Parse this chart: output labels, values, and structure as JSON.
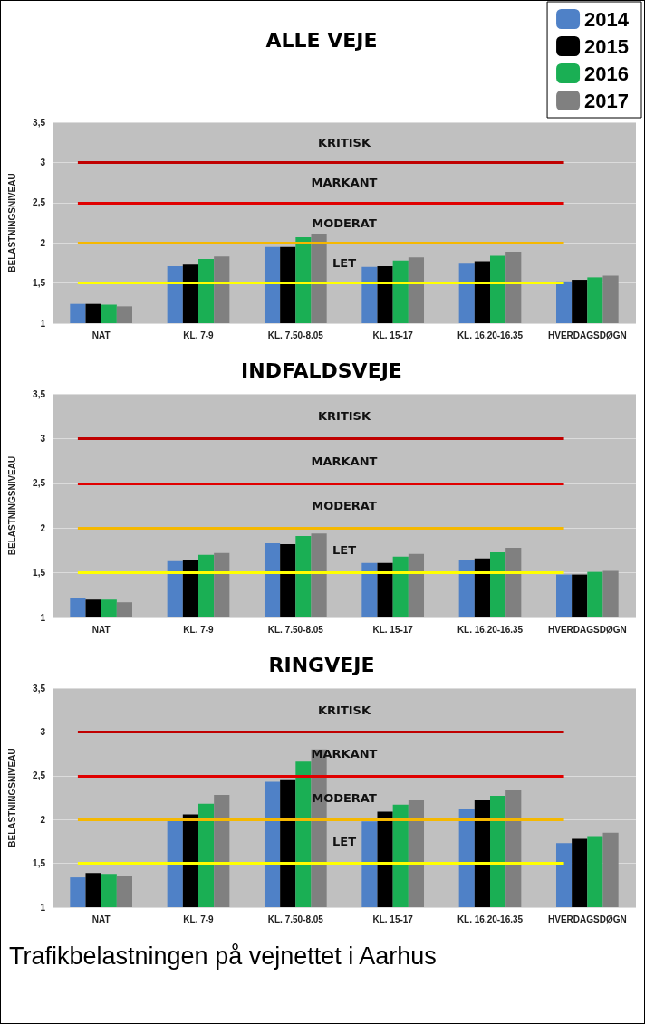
{
  "chart_data": [
    {
      "type": "bar",
      "title": "ALLE VEJE",
      "ylabel": "BELASTNINGSNIVEAU",
      "categories": [
        "NAT",
        "KL. 7-9",
        "KL. 7.50-8.05",
        "KL. 15-17",
        "KL. 16.20-16.35",
        "HVERDAGSDØGN"
      ],
      "series": [
        {
          "name": "2014",
          "color": "#4f81c7",
          "values": [
            1.24,
            1.71,
            1.95,
            1.7,
            1.74,
            1.52
          ]
        },
        {
          "name": "2015",
          "color": "#000000",
          "values": [
            1.24,
            1.73,
            1.95,
            1.71,
            1.77,
            1.54
          ]
        },
        {
          "name": "2016",
          "color": "#1aaf54",
          "values": [
            1.23,
            1.8,
            2.07,
            1.78,
            1.84,
            1.57
          ]
        },
        {
          "name": "2017",
          "color": "#808080",
          "values": [
            1.21,
            1.83,
            2.11,
            1.82,
            1.89,
            1.59
          ]
        }
      ],
      "ylim": [
        1,
        3.5
      ],
      "yticks": [
        1,
        {
          "value": 1.5,
          "label": "1,5"
        },
        2,
        {
          "value": 2.5,
          "label": "2,5"
        },
        3,
        {
          "value": 3.5,
          "label": "3,5"
        }
      ],
      "ref_lines": [
        {
          "axis": "y",
          "value": 1.5,
          "color": "#ffff00"
        },
        {
          "axis": "y",
          "value": 2,
          "color": "#f5b800"
        },
        {
          "axis": "y",
          "value": 2.5,
          "color": "#e00000"
        },
        {
          "axis": "y",
          "value": 3,
          "color": "#c00000"
        }
      ],
      "annotations": [
        "KRITISK",
        "MARKANT",
        "MODERAT",
        "LET"
      ],
      "grid": "y",
      "legend": "top right"
    },
    {
      "type": "bar",
      "title": "INDFALDSVEJE",
      "ylabel": "BELASTNINGSNIVEAU",
      "categories": [
        "NAT",
        "KL. 7-9",
        "KL. 7.50-8.05",
        "KL. 15-17",
        "KL. 16.20-16.35",
        "HVERDAGSDØGN"
      ],
      "series": [
        {
          "color": "#4f81c7",
          "values": [
            1.22,
            1.63,
            1.83,
            1.61,
            1.64,
            1.48
          ]
        },
        {
          "color": "#000000",
          "values": [
            1.2,
            1.64,
            1.82,
            1.61,
            1.66,
            1.48
          ]
        },
        {
          "color": "#1aaf54",
          "values": [
            1.2,
            1.7,
            1.91,
            1.68,
            1.73,
            1.51
          ]
        },
        {
          "color": "#808080",
          "values": [
            1.17,
            1.72,
            1.94,
            1.71,
            1.78,
            1.52
          ]
        }
      ],
      "ylim": [
        1,
        3.5
      ],
      "yticks": [
        1,
        {
          "value": 1.5,
          "label": "1,5"
        },
        2,
        {
          "value": 2.5,
          "label": "2,5"
        },
        3,
        {
          "value": 3.5,
          "label": "3,5"
        }
      ],
      "ref_lines": [
        {
          "axis": "y",
          "value": 1.5,
          "color": "#ffff00"
        },
        {
          "axis": "y",
          "value": 2,
          "color": "#f5b800"
        },
        {
          "axis": "y",
          "value": 2.5,
          "color": "#e00000"
        },
        {
          "axis": "y",
          "value": 3,
          "color": "#c00000"
        }
      ],
      "annotations": [
        "KRITISK",
        "MARKANT",
        "MODERAT",
        "LET"
      ],
      "grid": "y"
    },
    {
      "type": "bar",
      "title": "RINGVEJE",
      "ylabel": "BELASTNINGSNIVEAU",
      "categories": [
        "NAT",
        "KL. 7-9",
        "KL. 7.50-8.05",
        "KL. 15-17",
        "KL. 16.20-16.35",
        "HVERDAGSDØGN"
      ],
      "series": [
        {
          "color": "#4f81c7",
          "values": [
            1.34,
            1.99,
            2.43,
            1.98,
            2.12,
            1.73
          ]
        },
        {
          "color": "#000000",
          "values": [
            1.39,
            2.06,
            2.46,
            2.09,
            2.22,
            1.78
          ]
        },
        {
          "color": "#1aaf54",
          "values": [
            1.38,
            2.18,
            2.66,
            2.17,
            2.27,
            1.81
          ]
        },
        {
          "color": "#808080",
          "values": [
            1.36,
            2.28,
            2.8,
            2.22,
            2.34,
            1.85
          ]
        }
      ],
      "ylim": [
        1,
        3.5
      ],
      "yticks": [
        1,
        {
          "value": 1.5,
          "label": "1,5"
        },
        2,
        {
          "value": 2.5,
          "label": "2,5"
        },
        3,
        {
          "value": 3.5,
          "label": "3,5"
        }
      ],
      "ref_lines": [
        {
          "axis": "y",
          "value": 1.5,
          "color": "#ffff00"
        },
        {
          "axis": "y",
          "value": 2,
          "color": "#f5b800"
        },
        {
          "axis": "y",
          "value": 2.5,
          "color": "#e00000"
        },
        {
          "axis": "y",
          "value": 3,
          "color": "#c00000"
        }
      ],
      "annotations": [
        "KRITISK",
        "MARKANT",
        "MODERAT",
        "LET",
        "Trafikbelastningen på vejnettet i Aarhus"
      ],
      "grid": "y"
    }
  ]
}
